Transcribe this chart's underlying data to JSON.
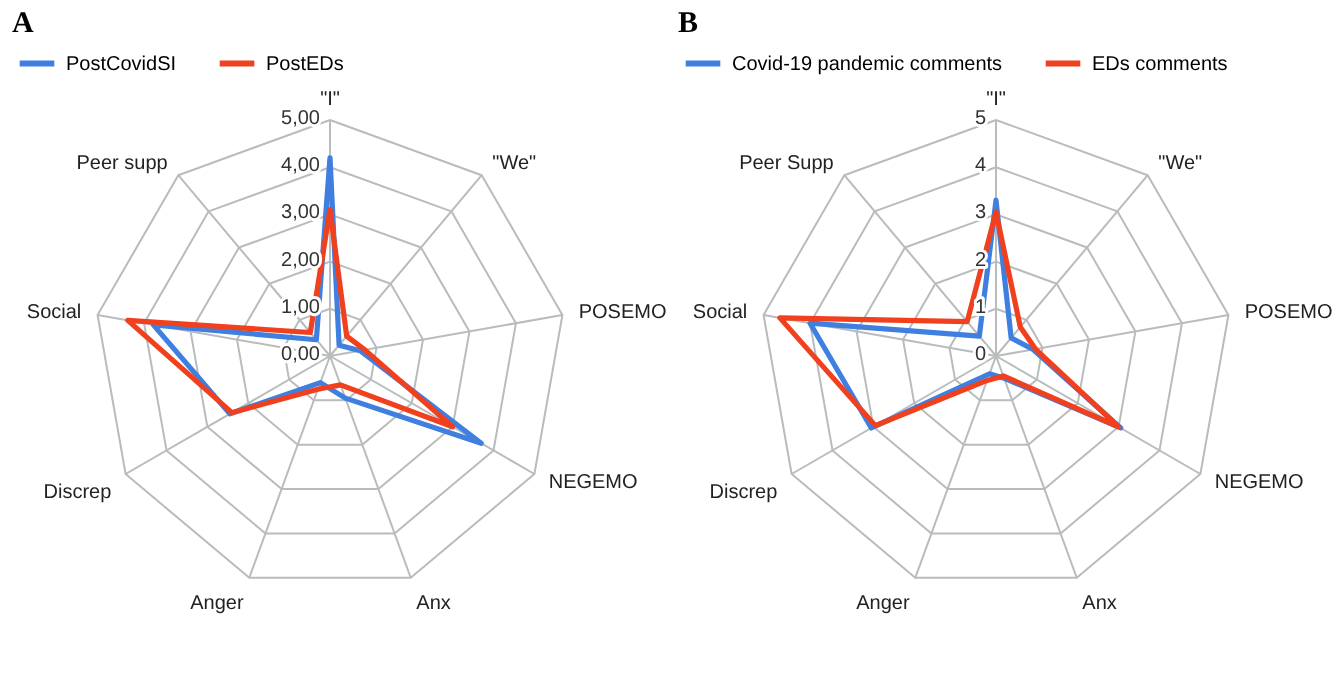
{
  "chart_data": [
    {
      "type": "radar",
      "title": "A",
      "legend": "top",
      "grid": true,
      "categories": [
        "\"I\"",
        "\"We\"",
        "POSEMO",
        "NEGEMO",
        "Anx",
        "Anger",
        "Discrep",
        "Social",
        "Peer supp"
      ],
      "ylim": [
        0,
        5
      ],
      "yticks": [
        {
          "value": 0,
          "label": "0,00"
        },
        {
          "value": 1,
          "label": "1,00"
        },
        {
          "value": 2,
          "label": "2,00"
        },
        {
          "value": 3,
          "label": "3,00"
        },
        {
          "value": 4,
          "label": "4,00"
        },
        {
          "value": 5,
          "label": "5,00"
        }
      ],
      "series": [
        {
          "name": "PostCovidSI",
          "color": "#3f7fe0",
          "values": [
            4.2,
            0.3,
            0.65,
            3.7,
            0.95,
            0.6,
            2.45,
            3.8,
            0.45
          ]
        },
        {
          "name": "PostEDs",
          "color": "#f0401e",
          "values": [
            3.1,
            0.55,
            0.75,
            3.0,
            0.65,
            0.75,
            2.4,
            4.35,
            0.65
          ]
        }
      ]
    },
    {
      "type": "radar",
      "title": "B",
      "legend": "top",
      "grid": true,
      "categories": [
        "\"I\"",
        "\"We\"",
        "POSEMO",
        "NEGEMO",
        "Anx",
        "Anger",
        "Discrep",
        "Social",
        "Peer Supp"
      ],
      "ylim": [
        0,
        5
      ],
      "yticks": [
        0,
        1,
        2,
        3,
        4,
        5
      ],
      "series": [
        {
          "name": "Covid-19 pandemic comments",
          "color": "#3f7fe0",
          "values": [
            3.3,
            0.5,
            0.8,
            3.05,
            0.5,
            0.4,
            3.05,
            4.0,
            0.55
          ]
        },
        {
          "name": "EDs comments",
          "color": "#f0401e",
          "values": [
            3.05,
            0.8,
            0.85,
            3.0,
            0.45,
            0.55,
            2.95,
            4.65,
            0.95
          ]
        }
      ]
    }
  ]
}
